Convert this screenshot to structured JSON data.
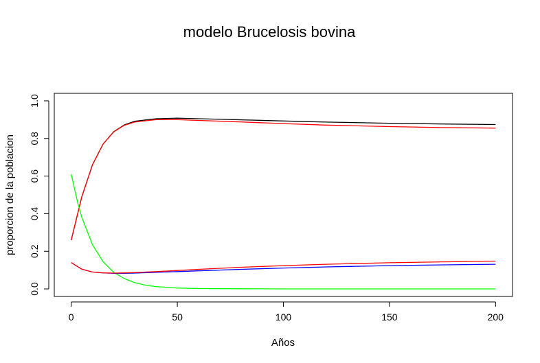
{
  "chart_data": {
    "type": "line",
    "title": "modelo Brucelosis bovina",
    "xlabel": "Años",
    "ylabel": "proporcion de la poblacion",
    "xlim": [
      -8,
      208
    ],
    "ylim": [
      -0.04,
      1.04
    ],
    "xticks": [
      0,
      50,
      100,
      150,
      200
    ],
    "yticks": [
      0.0,
      0.2,
      0.4,
      0.6,
      0.8,
      1.0
    ],
    "xtick_labels": [
      "0",
      "50",
      "100",
      "150",
      "200"
    ],
    "ytick_labels": [
      "0.0",
      "0.2",
      "0.4",
      "0.6",
      "0.8",
      "1.0"
    ],
    "grid": false,
    "series": [
      {
        "color": "#000000",
        "x": [
          0,
          5,
          10,
          15,
          20,
          25,
          30,
          40,
          50,
          60,
          80,
          100,
          120,
          150,
          175,
          200
        ],
        "y": [
          0.26,
          0.49,
          0.66,
          0.77,
          0.836,
          0.872,
          0.892,
          0.905,
          0.908,
          0.905,
          0.899,
          0.893,
          0.887,
          0.881,
          0.877,
          0.874
        ]
      },
      {
        "color": "#ff0000",
        "x": [
          0,
          5,
          10,
          15,
          20,
          25,
          30,
          40,
          50,
          60,
          80,
          100,
          120,
          150,
          175,
          200
        ],
        "y": [
          0.26,
          0.49,
          0.66,
          0.77,
          0.835,
          0.87,
          0.888,
          0.9,
          0.9,
          0.896,
          0.888,
          0.879,
          0.871,
          0.863,
          0.858,
          0.855
        ]
      },
      {
        "color": "#00ff00",
        "x": [
          0,
          3,
          5,
          10,
          15,
          20,
          25,
          30,
          35,
          40,
          50,
          60,
          80,
          100,
          150,
          200
        ],
        "y": [
          0.61,
          0.46,
          0.38,
          0.235,
          0.145,
          0.088,
          0.055,
          0.033,
          0.02,
          0.012,
          0.005,
          0.002,
          0.001,
          0.0,
          0.0,
          0.0
        ]
      },
      {
        "color": "#0000ff",
        "x": [
          0,
          5,
          10,
          15,
          20,
          25,
          30,
          40,
          50,
          60,
          80,
          100,
          120,
          150,
          175,
          200
        ],
        "y": [
          0.14,
          0.105,
          0.09,
          0.085,
          0.083,
          0.083,
          0.084,
          0.088,
          0.092,
          0.096,
          0.104,
          0.111,
          0.117,
          0.124,
          0.128,
          0.131
        ]
      },
      {
        "color": "#ff0000",
        "x": [
          0,
          5,
          10,
          15,
          20,
          25,
          30,
          40,
          50,
          60,
          80,
          100,
          120,
          150,
          175,
          200
        ],
        "y": [
          0.14,
          0.105,
          0.09,
          0.085,
          0.084,
          0.085,
          0.087,
          0.092,
          0.098,
          0.104,
          0.115,
          0.124,
          0.131,
          0.139,
          0.144,
          0.148
        ]
      }
    ]
  }
}
